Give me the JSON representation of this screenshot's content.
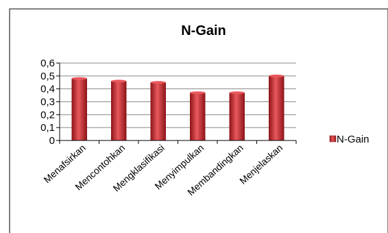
{
  "chart_data": {
    "type": "bar",
    "title": "N-Gain",
    "categories": [
      "Menafsirkan",
      "Mencontohkan",
      "Mengklasifikasi",
      "Menyimpulkan",
      "Membandingkan",
      "Menjelaskan"
    ],
    "series": [
      {
        "name": "N-Gain",
        "values": [
          0.48,
          0.46,
          0.45,
          0.37,
          0.37,
          0.5
        ]
      }
    ],
    "yticks": [
      "0",
      "0,1",
      "0,2",
      "0,3",
      "0,4",
      "0,5",
      "0,6"
    ],
    "ylim": [
      0,
      0.6
    ],
    "grid": true,
    "legend": "right",
    "colors": {
      "bar": "#c0272d",
      "bar_light": "#e8585c",
      "bar_dark": "#8e1519",
      "grid": "#878787",
      "axis": "#000000",
      "border": "#000000"
    }
  }
}
